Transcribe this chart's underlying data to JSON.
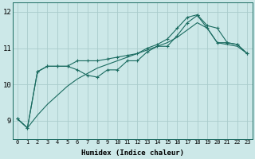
{
  "xlabel": "Humidex (Indice chaleur)",
  "background_color": "#cce8e8",
  "grid_color": "#aacccc",
  "line_color": "#1a6b60",
  "xlim": [
    -0.5,
    23.5
  ],
  "ylim": [
    8.5,
    12.25
  ],
  "yticks": [
    9,
    10,
    11,
    12
  ],
  "xticks": [
    0,
    1,
    2,
    3,
    4,
    5,
    6,
    7,
    8,
    9,
    10,
    11,
    12,
    13,
    14,
    15,
    16,
    17,
    18,
    19,
    20,
    21,
    22,
    23
  ],
  "smooth_line_x": [
    0,
    1,
    2,
    3,
    4,
    5,
    6,
    7,
    8,
    9,
    10,
    11,
    12,
    13,
    14,
    15,
    16,
    17,
    18,
    19,
    20,
    21,
    22,
    23
  ],
  "smooth_line_y": [
    9.05,
    8.8,
    9.15,
    9.45,
    9.7,
    9.95,
    10.15,
    10.3,
    10.45,
    10.55,
    10.65,
    10.75,
    10.85,
    10.95,
    11.05,
    11.15,
    11.3,
    11.5,
    11.7,
    11.55,
    11.15,
    11.1,
    11.05,
    10.85
  ],
  "line1_x": [
    0,
    1,
    2,
    3,
    4,
    5,
    6,
    7,
    8,
    9,
    10,
    11,
    12,
    13,
    14,
    15,
    16,
    17,
    18,
    19,
    20,
    21,
    22,
    23
  ],
  "line1_y": [
    9.05,
    8.8,
    10.35,
    10.5,
    10.5,
    10.5,
    10.4,
    10.25,
    10.2,
    10.4,
    10.4,
    10.65,
    10.65,
    10.9,
    11.05,
    11.05,
    11.35,
    11.7,
    11.9,
    11.55,
    11.15,
    11.15,
    11.1,
    10.85
  ],
  "line2_x": [
    0,
    1,
    2,
    3,
    4,
    5,
    6,
    7,
    8,
    9,
    10,
    11,
    12,
    13,
    14,
    15,
    16,
    17,
    18,
    19,
    20,
    21,
    22,
    23
  ],
  "line2_y": [
    9.05,
    8.8,
    10.35,
    10.5,
    10.5,
    10.5,
    10.65,
    10.65,
    10.65,
    10.7,
    10.75,
    10.8,
    10.85,
    11.0,
    11.1,
    11.25,
    11.55,
    11.85,
    11.92,
    11.62,
    11.55,
    11.15,
    11.1,
    10.85
  ],
  "marker": "+",
  "markersize": 3.5,
  "linewidth": 0.8
}
